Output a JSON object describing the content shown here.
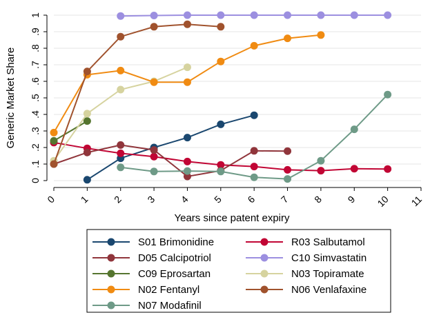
{
  "chart_data": {
    "type": "line",
    "xlabel": "Years since patent expiry",
    "ylabel": "Generic Market Share",
    "xlim": [
      0,
      11
    ],
    "ylim": [
      0,
      1
    ],
    "x_ticks": [
      "0",
      "1",
      "2",
      "3",
      "4",
      "5",
      "6",
      "7",
      "8",
      "9",
      "10",
      "11"
    ],
    "y_ticks": [
      "0",
      ".1",
      ".2",
      ".3",
      ".4",
      ".5",
      ".6",
      ".7",
      ".8",
      ".9",
      "1"
    ],
    "grid": true,
    "legend_position": "bottom",
    "series": [
      {
        "name": "S01 Brimonidine",
        "color": "#1a476f",
        "x": [
          1,
          2,
          3,
          4,
          5,
          6
        ],
        "y": [
          0.005,
          0.135,
          0.2,
          0.26,
          0.34,
          0.395
        ]
      },
      {
        "name": "R03 Salbutamol",
        "color": "#c10534",
        "x": [
          0,
          1,
          2,
          3,
          4,
          5,
          6,
          7,
          8,
          9,
          10
        ],
        "y": [
          0.23,
          0.195,
          0.165,
          0.145,
          0.115,
          0.095,
          0.085,
          0.065,
          0.06,
          0.072,
          0.07
        ]
      },
      {
        "name": "D05 Calcipotriol",
        "color": "#90353b",
        "x": [
          0,
          1,
          2,
          3,
          4,
          5,
          6,
          7
        ],
        "y": [
          0.1,
          0.17,
          0.215,
          0.185,
          0.025,
          0.06,
          0.18,
          0.178
        ]
      },
      {
        "name": "C10 Simvastatin",
        "color": "#9c8fe0",
        "x": [
          2,
          3,
          4,
          5,
          6,
          7,
          8,
          9,
          10
        ],
        "y": [
          0.995,
          0.998,
          1.0,
          1.0,
          1.0,
          1.0,
          1.0,
          1.0,
          1.0
        ]
      },
      {
        "name": "C09 Eprosartan",
        "color": "#55752f",
        "x": [
          0,
          1
        ],
        "y": [
          0.24,
          0.36
        ]
      },
      {
        "name": "N03 Topiramate",
        "color": "#d6d39f",
        "x": [
          0,
          1,
          2,
          3,
          4
        ],
        "y": [
          0.12,
          0.405,
          0.55,
          0.6,
          0.685
        ]
      },
      {
        "name": "N02 Fentanyl",
        "color": "#f08b12",
        "x": [
          0,
          1,
          2,
          3,
          4,
          5,
          6,
          7,
          8
        ],
        "y": [
          0.29,
          0.64,
          0.665,
          0.595,
          0.595,
          0.72,
          0.815,
          0.86,
          0.88
        ]
      },
      {
        "name": "N06 Venlafaxine",
        "color": "#a0522d",
        "x": [
          0,
          1,
          2,
          3,
          4,
          5
        ],
        "y": [
          0.1,
          0.66,
          0.87,
          0.93,
          0.945,
          0.93
        ]
      },
      {
        "name": "N07 Modafinil",
        "color": "#6e9a87",
        "x": [
          2,
          3,
          4,
          5,
          6,
          7,
          8,
          9,
          10
        ],
        "y": [
          0.08,
          0.055,
          0.058,
          0.055,
          0.02,
          0.01,
          0.12,
          0.31,
          0.52
        ]
      }
    ]
  }
}
